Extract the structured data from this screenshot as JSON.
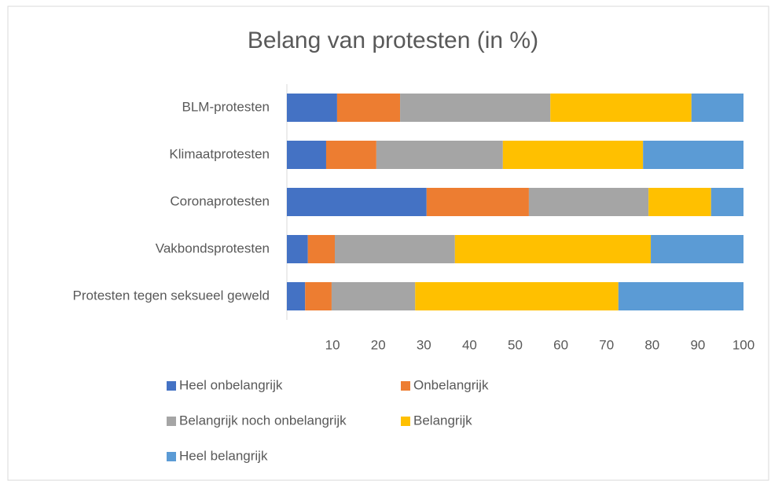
{
  "chart_data": {
    "type": "stacked_bar_horizontal",
    "title": "Belang van protesten (in %)",
    "categories": [
      "BLM-protesten",
      "Klimaatprotesten",
      "Coronaprotesten",
      "Vakbondsprotesten",
      "Protesten tegen seksueel geweld"
    ],
    "series": [
      {
        "name": "Heel onbelangrijk",
        "color": "#4472c4",
        "values": [
          11.0,
          8.6,
          30.6,
          4.6,
          4.0
        ]
      },
      {
        "name": "Onbelangrijk",
        "color": "#ed7d31",
        "values": [
          13.8,
          11.0,
          22.4,
          5.9,
          5.8
        ]
      },
      {
        "name": "Belangrijk noch onbelangrijk",
        "color": "#a5a5a5",
        "values": [
          32.9,
          27.7,
          26.2,
          26.3,
          18.3
        ]
      },
      {
        "name": "Belangrijk",
        "color": "#ffc000",
        "values": [
          30.9,
          30.7,
          13.7,
          42.9,
          44.5
        ]
      },
      {
        "name": "Heel belangrijk",
        "color": "#5b9bd5",
        "values": [
          11.4,
          22.0,
          7.1,
          20.3,
          27.4
        ]
      }
    ],
    "xlim": [
      0,
      100
    ],
    "xticks": [
      10,
      20,
      30,
      40,
      50,
      60,
      70,
      80,
      90,
      100
    ]
  }
}
